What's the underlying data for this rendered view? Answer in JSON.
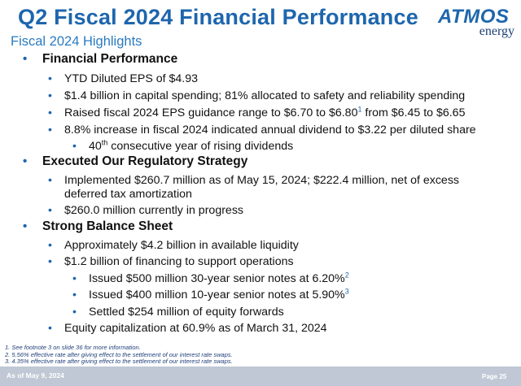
{
  "header": {
    "title": "Q2 Fiscal 2024 Financial Performance",
    "subtitle": "Fiscal 2024 Highlights",
    "logo_top": "ATMOS",
    "logo_bottom": "energy"
  },
  "sections": {
    "financial": {
      "heading": "Financial Performance",
      "b1": "YTD Diluted EPS of $4.93",
      "b2": "$1.4 billion in capital spending; 81% allocated to safety and reliability spending",
      "b3a": "Raised fiscal 2024 EPS guidance range to $6.70 to $6.80",
      "b3sup": "1",
      "b3b": " from $6.45 to $6.65",
      "b4": "8.8% increase in fiscal 2024 indicated annual dividend to $3.22 per diluted share",
      "b5a": "40",
      "b5sup": "th",
      "b5b": " consecutive year of rising dividends"
    },
    "regulatory": {
      "heading": "Executed Our Regulatory Strategy",
      "b1a": "Implemented $260.7 million as of May 15, 2024; $222.4 million, net of excess",
      "b1b": "deferred tax amortization",
      "b2": "$260.0 million currently in progress"
    },
    "balance": {
      "heading": "Strong Balance Sheet",
      "b1": "Approximately $4.2 billion in available liquidity",
      "b2": "$1.2 billion of financing to support operations",
      "b3a": "Issued $500 million 30-year senior notes at 6.20%",
      "b3sup": "2",
      "b4a": "Issued $400 million 10-year senior notes at 5.90%",
      "b4sup": "3",
      "b5": "Settled $254 million of equity forwards",
      "b6": "Equity capitalization at 60.9% as of March 31, 2024"
    }
  },
  "bullet_symbols": {
    "level1": "•",
    "level2": "•"
  },
  "footnotes": [
    "1. See footnote 3 on slide 36 for more information.",
    "2. 5.56% effective rate after giving effect to the settlement of our interest rate swaps.",
    "3. 4.35% effective rate after giving effect to the settlement of our interest rate swaps."
  ],
  "footer": {
    "date": "As of May 9, 2024",
    "page": "Page 25"
  },
  "colors": {
    "title": "#1e66ad",
    "subtitle": "#2a7bc0",
    "footer_bar": "#bfc8d4"
  }
}
